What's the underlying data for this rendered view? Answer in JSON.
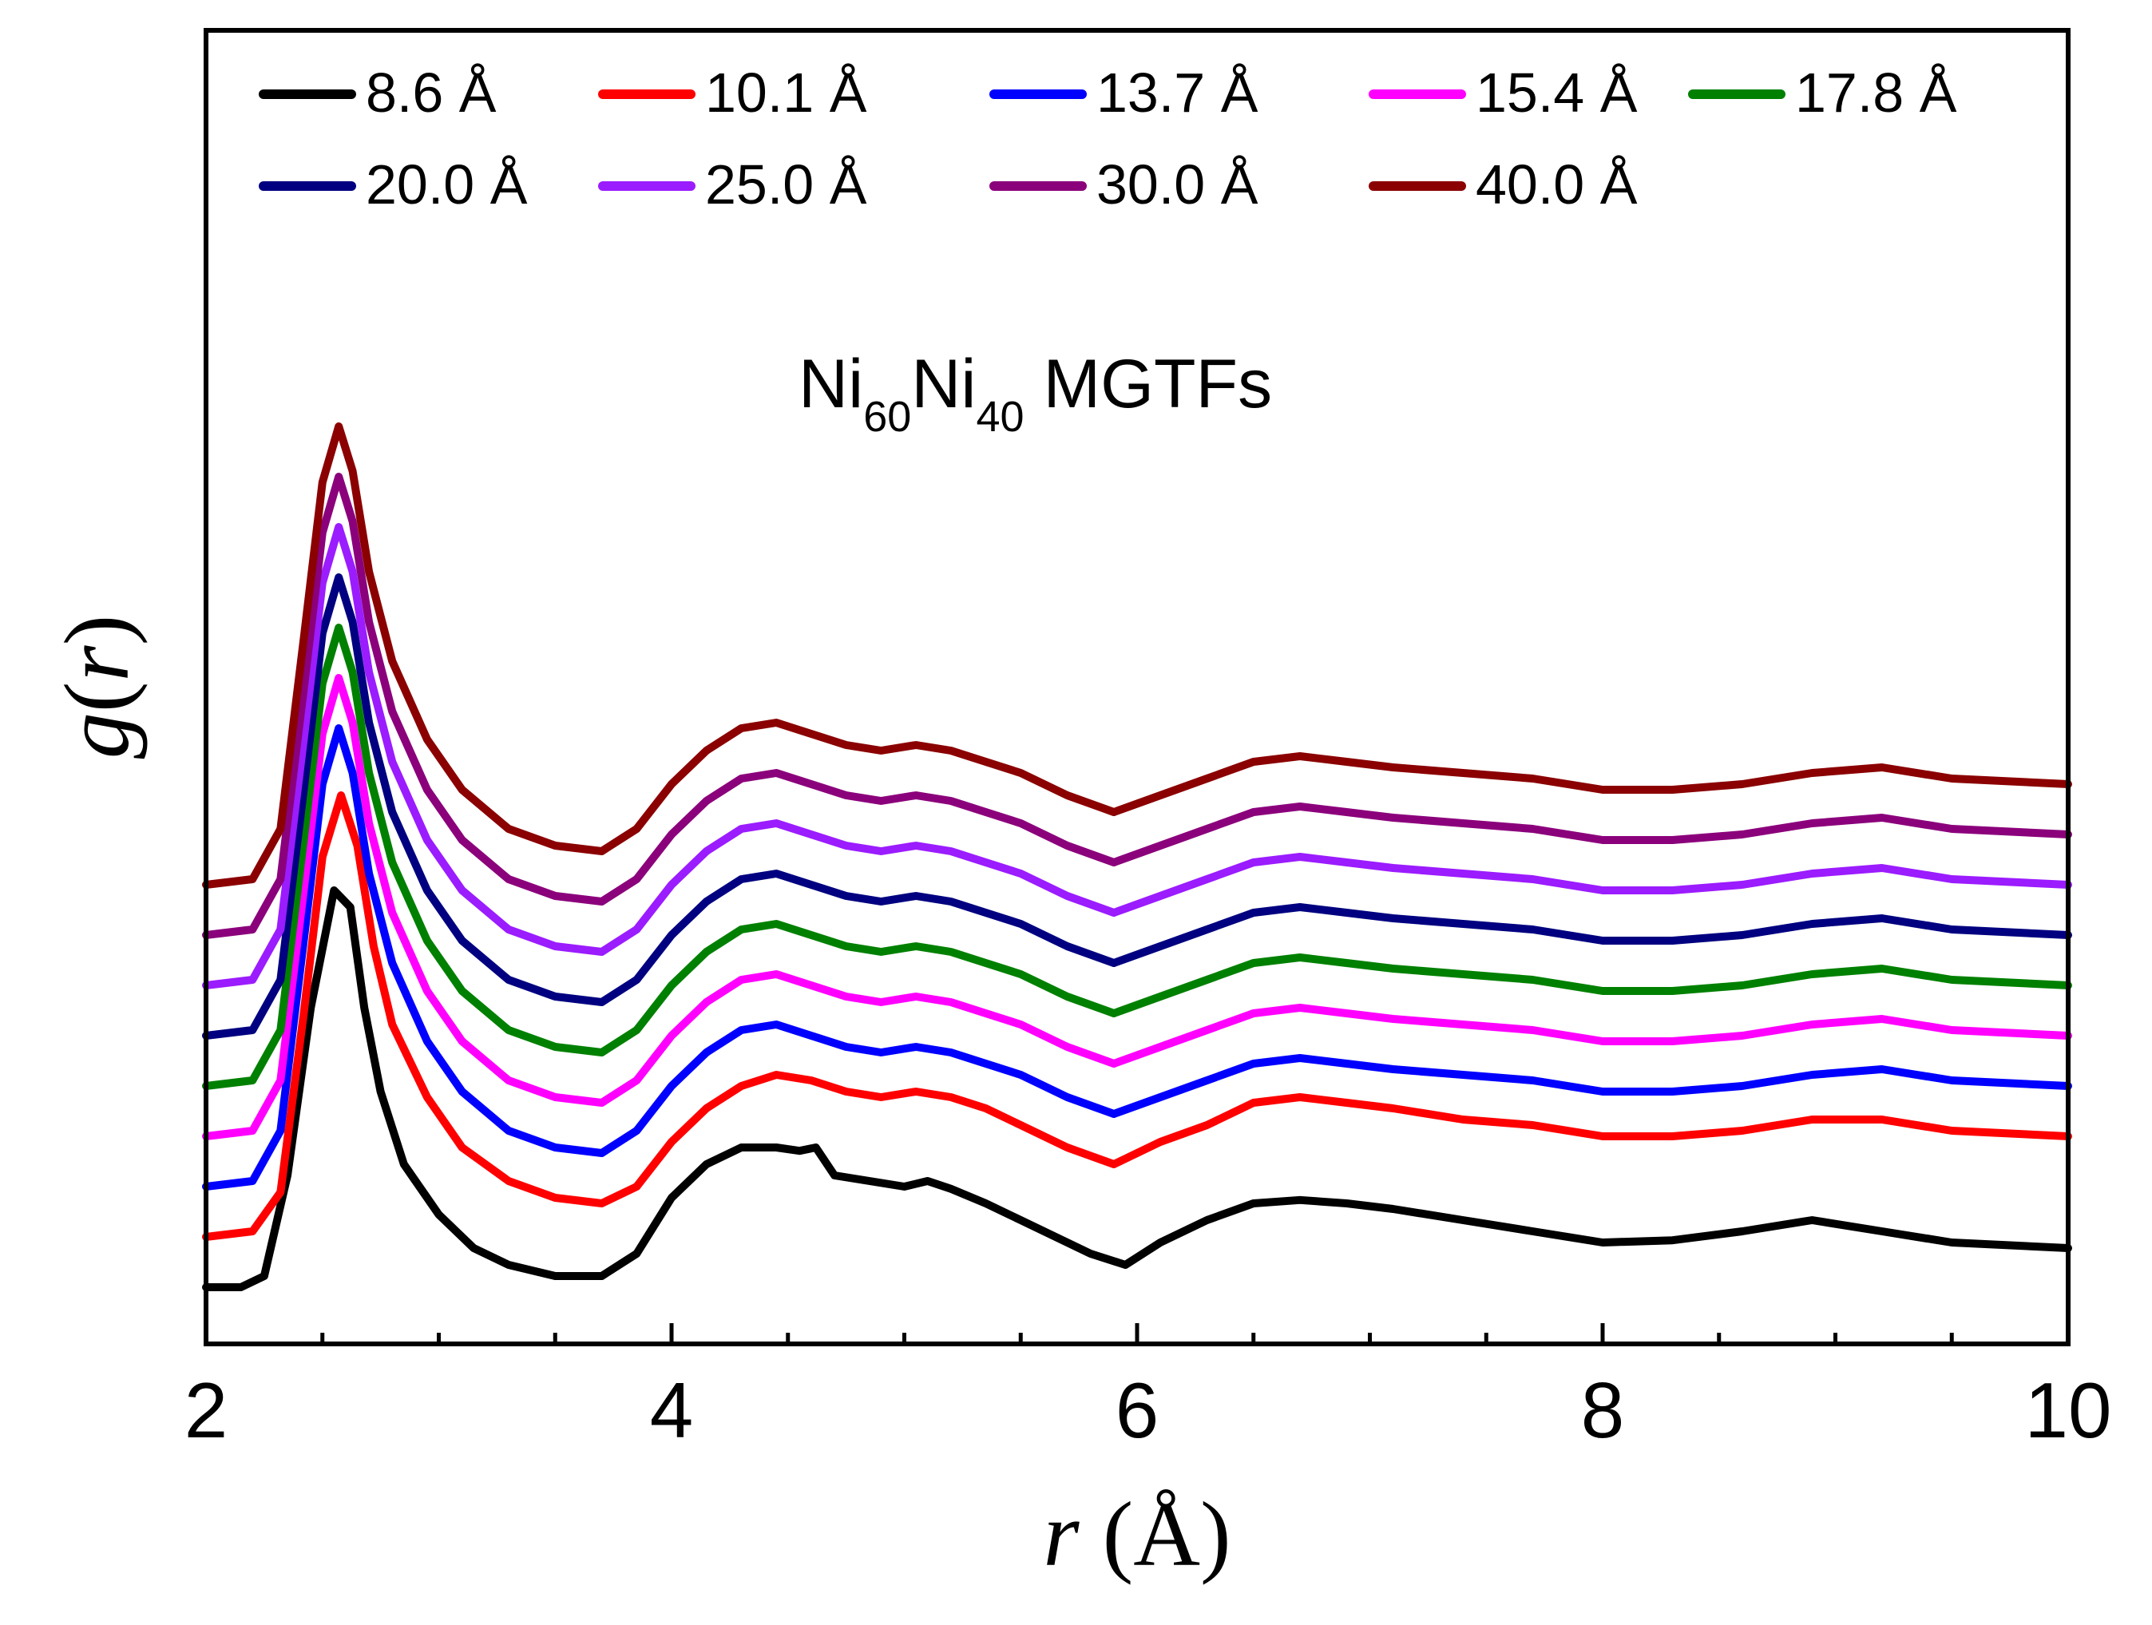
{
  "chart_data": {
    "type": "line",
    "title": "",
    "annotation": {
      "base1": "Ni",
      "sub1": "60",
      "base2": "Ni",
      "sub2": "40",
      "rest": " MGTFs"
    },
    "xlabel": {
      "var": "r",
      "unit": " (Å)"
    },
    "ylabel": {
      "var": "g",
      "open": "(",
      "arg": "r",
      "close": ")"
    },
    "xlim": [
      2,
      10
    ],
    "xticks": [
      "2",
      "4",
      "6",
      "8",
      "10"
    ],
    "y_tick_labels": false,
    "grid": false,
    "legend": {
      "placement": "top",
      "columns": 5
    },
    "series": [
      {
        "name": "8.6 Å",
        "color": "#000000",
        "offset": 0,
        "x": [
          2.0,
          2.15,
          2.25,
          2.35,
          2.45,
          2.55,
          2.62,
          2.68,
          2.75,
          2.85,
          3.0,
          3.15,
          3.3,
          3.5,
          3.7,
          3.85,
          4.0,
          4.15,
          4.3,
          4.45,
          4.55,
          4.62,
          4.7,
          4.85,
          5.0,
          5.1,
          5.2,
          5.35,
          5.5,
          5.65,
          5.8,
          5.95,
          6.1,
          6.3,
          6.5,
          6.7,
          6.9,
          7.1,
          7.4,
          7.7,
          8.0,
          8.3,
          8.6,
          8.9,
          9.2,
          9.5,
          10.0
        ],
        "y": [
          0.0,
          0.0,
          0.1,
          1.0,
          2.5,
          3.55,
          3.4,
          2.5,
          1.75,
          1.1,
          0.65,
          0.35,
          0.2,
          0.1,
          0.1,
          0.3,
          0.8,
          1.1,
          1.25,
          1.25,
          1.22,
          1.25,
          1.0,
          0.95,
          0.9,
          0.95,
          0.88,
          0.75,
          0.6,
          0.45,
          0.3,
          0.2,
          0.4,
          0.6,
          0.75,
          0.78,
          0.75,
          0.7,
          0.6,
          0.5,
          0.4,
          0.42,
          0.5,
          0.6,
          0.5,
          0.4,
          0.35
        ]
      },
      {
        "name": "10.1  Å",
        "color": "#ff0000",
        "offset": 0.45,
        "x": [
          2.0,
          2.2,
          2.32,
          2.42,
          2.5,
          2.58,
          2.65,
          2.72,
          2.8,
          2.95,
          3.1,
          3.3,
          3.5,
          3.7,
          3.85,
          4.0,
          4.15,
          4.3,
          4.45,
          4.6,
          4.75,
          4.9,
          5.05,
          5.2,
          5.35,
          5.5,
          5.7,
          5.9,
          6.1,
          6.3,
          6.5,
          6.7,
          6.9,
          7.1,
          7.4,
          7.7,
          8.0,
          8.3,
          8.6,
          8.9,
          9.2,
          9.5,
          10.0
        ],
        "y": [
          0.0,
          0.05,
          0.4,
          2.0,
          3.4,
          3.95,
          3.5,
          2.6,
          1.9,
          1.25,
          0.8,
          0.5,
          0.35,
          0.3,
          0.45,
          0.85,
          1.15,
          1.35,
          1.45,
          1.4,
          1.3,
          1.25,
          1.3,
          1.25,
          1.15,
          1.0,
          0.8,
          0.65,
          0.85,
          1.0,
          1.2,
          1.25,
          1.2,
          1.15,
          1.05,
          1.0,
          0.9,
          0.9,
          0.95,
          1.05,
          1.05,
          0.95,
          0.9
        ]
      },
      {
        "name": "13.7 Å",
        "color": "#0000ff",
        "offset": 0.9,
        "x": [
          2.0,
          2.2,
          2.32,
          2.42,
          2.5,
          2.57,
          2.63,
          2.7,
          2.8,
          2.95,
          3.1,
          3.3,
          3.5,
          3.7,
          3.85,
          4.0,
          4.15,
          4.3,
          4.45,
          4.6,
          4.75,
          4.9,
          5.05,
          5.2,
          5.35,
          5.5,
          5.7,
          5.9,
          6.1,
          6.3,
          6.5,
          6.7,
          6.9,
          7.1,
          7.4,
          7.7,
          8.0,
          8.3,
          8.6,
          8.9,
          9.2,
          9.5,
          10.0
        ],
        "y": [
          0.0,
          0.05,
          0.5,
          2.2,
          3.6,
          4.1,
          3.7,
          2.8,
          2.0,
          1.3,
          0.85,
          0.5,
          0.35,
          0.3,
          0.5,
          0.9,
          1.2,
          1.4,
          1.45,
          1.35,
          1.25,
          1.2,
          1.25,
          1.2,
          1.1,
          1.0,
          0.8,
          0.65,
          0.8,
          0.95,
          1.1,
          1.15,
          1.1,
          1.05,
          1.0,
          0.95,
          0.85,
          0.85,
          0.9,
          1.0,
          1.05,
          0.95,
          0.9
        ]
      },
      {
        "name": "15.4 Å",
        "color": "#ff00ff",
        "offset": 1.35,
        "x": [
          2.0,
          2.2,
          2.32,
          2.42,
          2.5,
          2.57,
          2.63,
          2.7,
          2.8,
          2.95,
          3.1,
          3.3,
          3.5,
          3.7,
          3.85,
          4.0,
          4.15,
          4.3,
          4.45,
          4.6,
          4.75,
          4.9,
          5.05,
          5.2,
          5.35,
          5.5,
          5.7,
          5.9,
          6.1,
          6.3,
          6.5,
          6.7,
          6.9,
          7.1,
          7.4,
          7.7,
          8.0,
          8.3,
          8.6,
          8.9,
          9.2,
          9.5,
          10.0
        ],
        "y": [
          0.0,
          0.05,
          0.5,
          2.2,
          3.6,
          4.1,
          3.7,
          2.8,
          2.0,
          1.3,
          0.85,
          0.5,
          0.35,
          0.3,
          0.5,
          0.9,
          1.2,
          1.4,
          1.45,
          1.35,
          1.25,
          1.2,
          1.25,
          1.2,
          1.1,
          1.0,
          0.8,
          0.65,
          0.8,
          0.95,
          1.1,
          1.15,
          1.1,
          1.05,
          1.0,
          0.95,
          0.85,
          0.85,
          0.9,
          1.0,
          1.05,
          0.95,
          0.9
        ]
      },
      {
        "name": "17.8 Å",
        "color": "#008000",
        "offset": 1.8,
        "x": [
          2.0,
          2.2,
          2.32,
          2.42,
          2.5,
          2.57,
          2.63,
          2.7,
          2.8,
          2.95,
          3.1,
          3.3,
          3.5,
          3.7,
          3.85,
          4.0,
          4.15,
          4.3,
          4.45,
          4.6,
          4.75,
          4.9,
          5.05,
          5.2,
          5.35,
          5.5,
          5.7,
          5.9,
          6.1,
          6.3,
          6.5,
          6.7,
          6.9,
          7.1,
          7.4,
          7.7,
          8.0,
          8.3,
          8.6,
          8.9,
          9.2,
          9.5,
          10.0
        ],
        "y": [
          0.0,
          0.05,
          0.5,
          2.2,
          3.6,
          4.1,
          3.7,
          2.8,
          2.0,
          1.3,
          0.85,
          0.5,
          0.35,
          0.3,
          0.5,
          0.9,
          1.2,
          1.4,
          1.45,
          1.35,
          1.25,
          1.2,
          1.25,
          1.2,
          1.1,
          1.0,
          0.8,
          0.65,
          0.8,
          0.95,
          1.1,
          1.15,
          1.1,
          1.05,
          1.0,
          0.95,
          0.85,
          0.85,
          0.9,
          1.0,
          1.05,
          0.95,
          0.9
        ]
      },
      {
        "name": "20.0 Å",
        "color": "#000080",
        "offset": 2.25,
        "x": [
          2.0,
          2.2,
          2.32,
          2.42,
          2.5,
          2.57,
          2.63,
          2.7,
          2.8,
          2.95,
          3.1,
          3.3,
          3.5,
          3.7,
          3.85,
          4.0,
          4.15,
          4.3,
          4.45,
          4.6,
          4.75,
          4.9,
          5.05,
          5.2,
          5.35,
          5.5,
          5.7,
          5.9,
          6.1,
          6.3,
          6.5,
          6.7,
          6.9,
          7.1,
          7.4,
          7.7,
          8.0,
          8.3,
          8.6,
          8.9,
          9.2,
          9.5,
          10.0
        ],
        "y": [
          0.0,
          0.05,
          0.5,
          2.2,
          3.6,
          4.1,
          3.7,
          2.8,
          2.0,
          1.3,
          0.85,
          0.5,
          0.35,
          0.3,
          0.5,
          0.9,
          1.2,
          1.4,
          1.45,
          1.35,
          1.25,
          1.2,
          1.25,
          1.2,
          1.1,
          1.0,
          0.8,
          0.65,
          0.8,
          0.95,
          1.1,
          1.15,
          1.1,
          1.05,
          1.0,
          0.95,
          0.85,
          0.85,
          0.9,
          1.0,
          1.05,
          0.95,
          0.9
        ]
      },
      {
        "name": "25.0  Å",
        "color": "#9b1cff",
        "offset": 2.7,
        "x": [
          2.0,
          2.2,
          2.32,
          2.42,
          2.5,
          2.57,
          2.63,
          2.7,
          2.8,
          2.95,
          3.1,
          3.3,
          3.5,
          3.7,
          3.85,
          4.0,
          4.15,
          4.3,
          4.45,
          4.6,
          4.75,
          4.9,
          5.05,
          5.2,
          5.35,
          5.5,
          5.7,
          5.9,
          6.1,
          6.3,
          6.5,
          6.7,
          6.9,
          7.1,
          7.4,
          7.7,
          8.0,
          8.3,
          8.6,
          8.9,
          9.2,
          9.5,
          10.0
        ],
        "y": [
          0.0,
          0.05,
          0.5,
          2.2,
          3.6,
          4.1,
          3.7,
          2.8,
          2.0,
          1.3,
          0.85,
          0.5,
          0.35,
          0.3,
          0.5,
          0.9,
          1.2,
          1.4,
          1.45,
          1.35,
          1.25,
          1.2,
          1.25,
          1.2,
          1.1,
          1.0,
          0.8,
          0.65,
          0.8,
          0.95,
          1.1,
          1.15,
          1.1,
          1.05,
          1.0,
          0.95,
          0.85,
          0.85,
          0.9,
          1.0,
          1.05,
          0.95,
          0.9
        ]
      },
      {
        "name": "30.0 Å",
        "color": "#8b007b",
        "offset": 3.15,
        "x": [
          2.0,
          2.2,
          2.32,
          2.42,
          2.5,
          2.57,
          2.63,
          2.7,
          2.8,
          2.95,
          3.1,
          3.3,
          3.5,
          3.7,
          3.85,
          4.0,
          4.15,
          4.3,
          4.45,
          4.6,
          4.75,
          4.9,
          5.05,
          5.2,
          5.35,
          5.5,
          5.7,
          5.9,
          6.1,
          6.3,
          6.5,
          6.7,
          6.9,
          7.1,
          7.4,
          7.7,
          8.0,
          8.3,
          8.6,
          8.9,
          9.2,
          9.5,
          10.0
        ],
        "y": [
          0.0,
          0.05,
          0.5,
          2.2,
          3.6,
          4.1,
          3.7,
          2.8,
          2.0,
          1.3,
          0.85,
          0.5,
          0.35,
          0.3,
          0.5,
          0.9,
          1.2,
          1.4,
          1.45,
          1.35,
          1.25,
          1.2,
          1.25,
          1.2,
          1.1,
          1.0,
          0.8,
          0.65,
          0.8,
          0.95,
          1.1,
          1.15,
          1.1,
          1.05,
          1.0,
          0.95,
          0.85,
          0.85,
          0.9,
          1.0,
          1.05,
          0.95,
          0.9
        ]
      },
      {
        "name": "40.0 Å",
        "color": "#8b0000",
        "offset": 3.6,
        "x": [
          2.0,
          2.2,
          2.32,
          2.42,
          2.5,
          2.57,
          2.63,
          2.7,
          2.8,
          2.95,
          3.1,
          3.3,
          3.5,
          3.7,
          3.85,
          4.0,
          4.15,
          4.3,
          4.45,
          4.6,
          4.75,
          4.9,
          5.05,
          5.2,
          5.35,
          5.5,
          5.7,
          5.9,
          6.1,
          6.3,
          6.5,
          6.7,
          6.9,
          7.1,
          7.4,
          7.7,
          8.0,
          8.3,
          8.6,
          8.9,
          9.2,
          9.5,
          10.0
        ],
        "y": [
          0.0,
          0.05,
          0.5,
          2.2,
          3.6,
          4.1,
          3.7,
          2.8,
          2.0,
          1.3,
          0.85,
          0.5,
          0.35,
          0.3,
          0.5,
          0.9,
          1.2,
          1.4,
          1.45,
          1.35,
          1.25,
          1.2,
          1.25,
          1.2,
          1.1,
          1.0,
          0.8,
          0.65,
          0.8,
          0.95,
          1.1,
          1.15,
          1.1,
          1.05,
          1.0,
          0.95,
          0.85,
          0.85,
          0.9,
          1.0,
          1.05,
          0.95,
          0.9
        ]
      }
    ]
  }
}
